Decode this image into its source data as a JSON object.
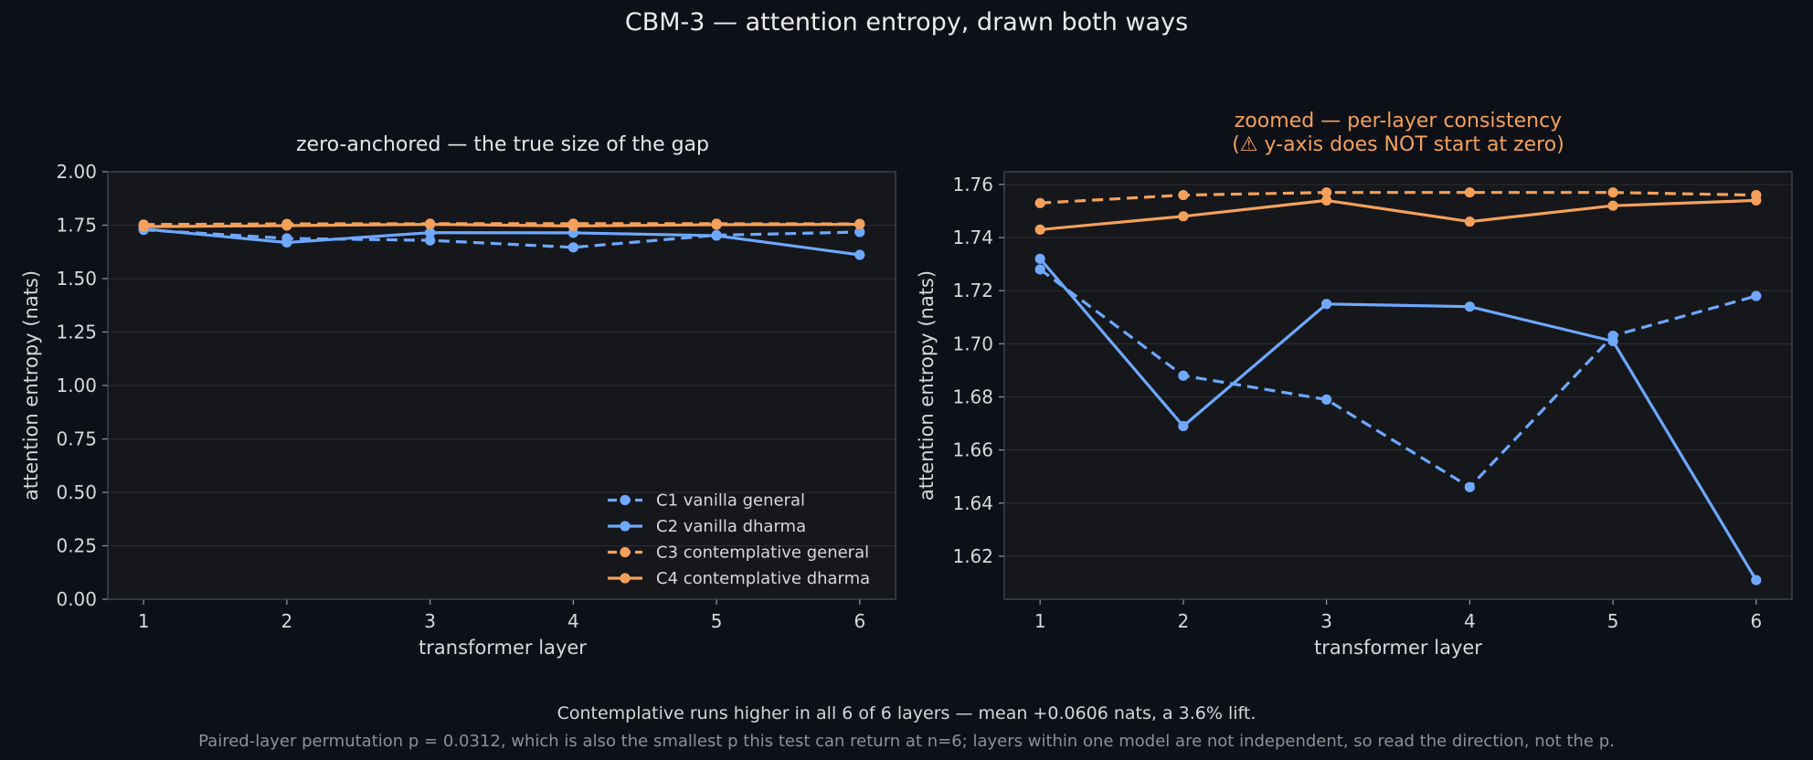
{
  "figure": {
    "suptitle": "CBM-3 — attention entropy, drawn both ways",
    "footer_line1": "Contemplative runs higher in all 6 of 6 layers — mean +0.0606 nats, a 3.6% lift.",
    "footer_line2": "Paired-layer permutation p = 0.0312, which is also the smallest p this test can return at n=6; layers within one model are not independent, so read the direction, not the p."
  },
  "colors": {
    "background": "#0d1017",
    "axes_face": "#15171b",
    "vanilla": "#6ea8ff",
    "contemplative": "#f5a05a",
    "title_warning": "#f5a05a",
    "text": "#e6e6e6",
    "muted_text": "#9a9a9a",
    "grid": "#2c2f36",
    "spine": "#4a4d55"
  },
  "chart_data": [
    {
      "type": "line",
      "title": "zero-anchored — the true size of the gap",
      "xlabel": "transformer layer",
      "ylabel": "attention entropy (nats)",
      "x": [
        1,
        2,
        3,
        4,
        5,
        6
      ],
      "xlim": [
        0.75,
        6.25
      ],
      "ylim": [
        0.0,
        2.0
      ],
      "yticks": [
        0.0,
        0.25,
        0.5,
        0.75,
        1.0,
        1.25,
        1.5,
        1.75,
        2.0
      ],
      "ytick_labels": [
        "0.00",
        "0.25",
        "0.50",
        "0.75",
        "1.00",
        "1.25",
        "1.50",
        "1.75",
        "2.00"
      ],
      "grid": "horizontal",
      "legend": "lower-right",
      "series": [
        {
          "name": "C1 vanilla general",
          "color": "#6ea8ff",
          "dashed": true,
          "values": [
            1.728,
            1.688,
            1.679,
            1.646,
            1.703,
            1.718
          ]
        },
        {
          "name": "C2 vanilla dharma",
          "color": "#6ea8ff",
          "dashed": false,
          "values": [
            1.732,
            1.669,
            1.715,
            1.714,
            1.701,
            1.611
          ]
        },
        {
          "name": "C3 contemplative general",
          "color": "#f5a05a",
          "dashed": true,
          "values": [
            1.753,
            1.756,
            1.757,
            1.757,
            1.757,
            1.756
          ]
        },
        {
          "name": "C4 contemplative dharma",
          "color": "#f5a05a",
          "dashed": false,
          "values": [
            1.743,
            1.748,
            1.754,
            1.746,
            1.752,
            1.754
          ]
        }
      ]
    },
    {
      "type": "line",
      "title_line1": "zoomed — per-layer consistency",
      "title_line2": "(⚠ y-axis does NOT start at zero)",
      "xlabel": "transformer layer",
      "ylabel": "attention entropy (nats)",
      "x": [
        1,
        2,
        3,
        4,
        5,
        6
      ],
      "xlim": [
        0.75,
        6.25
      ],
      "ylim": [
        1.6038,
        1.7648
      ],
      "yticks": [
        1.62,
        1.64,
        1.66,
        1.68,
        1.7,
        1.72,
        1.74,
        1.76
      ],
      "ytick_labels": [
        "1.62",
        "1.64",
        "1.66",
        "1.68",
        "1.70",
        "1.72",
        "1.74",
        "1.76"
      ],
      "grid": "horizontal",
      "legend": "none",
      "series": [
        {
          "name": "C1 vanilla general",
          "color": "#6ea8ff",
          "dashed": true,
          "values": [
            1.728,
            1.688,
            1.679,
            1.646,
            1.703,
            1.718
          ]
        },
        {
          "name": "C2 vanilla dharma",
          "color": "#6ea8ff",
          "dashed": false,
          "values": [
            1.732,
            1.669,
            1.715,
            1.714,
            1.701,
            1.611
          ]
        },
        {
          "name": "C3 contemplative general",
          "color": "#f5a05a",
          "dashed": true,
          "values": [
            1.753,
            1.756,
            1.757,
            1.757,
            1.757,
            1.756
          ]
        },
        {
          "name": "C4 contemplative dharma",
          "color": "#f5a05a",
          "dashed": false,
          "values": [
            1.743,
            1.748,
            1.754,
            1.746,
            1.752,
            1.754
          ]
        }
      ]
    }
  ]
}
